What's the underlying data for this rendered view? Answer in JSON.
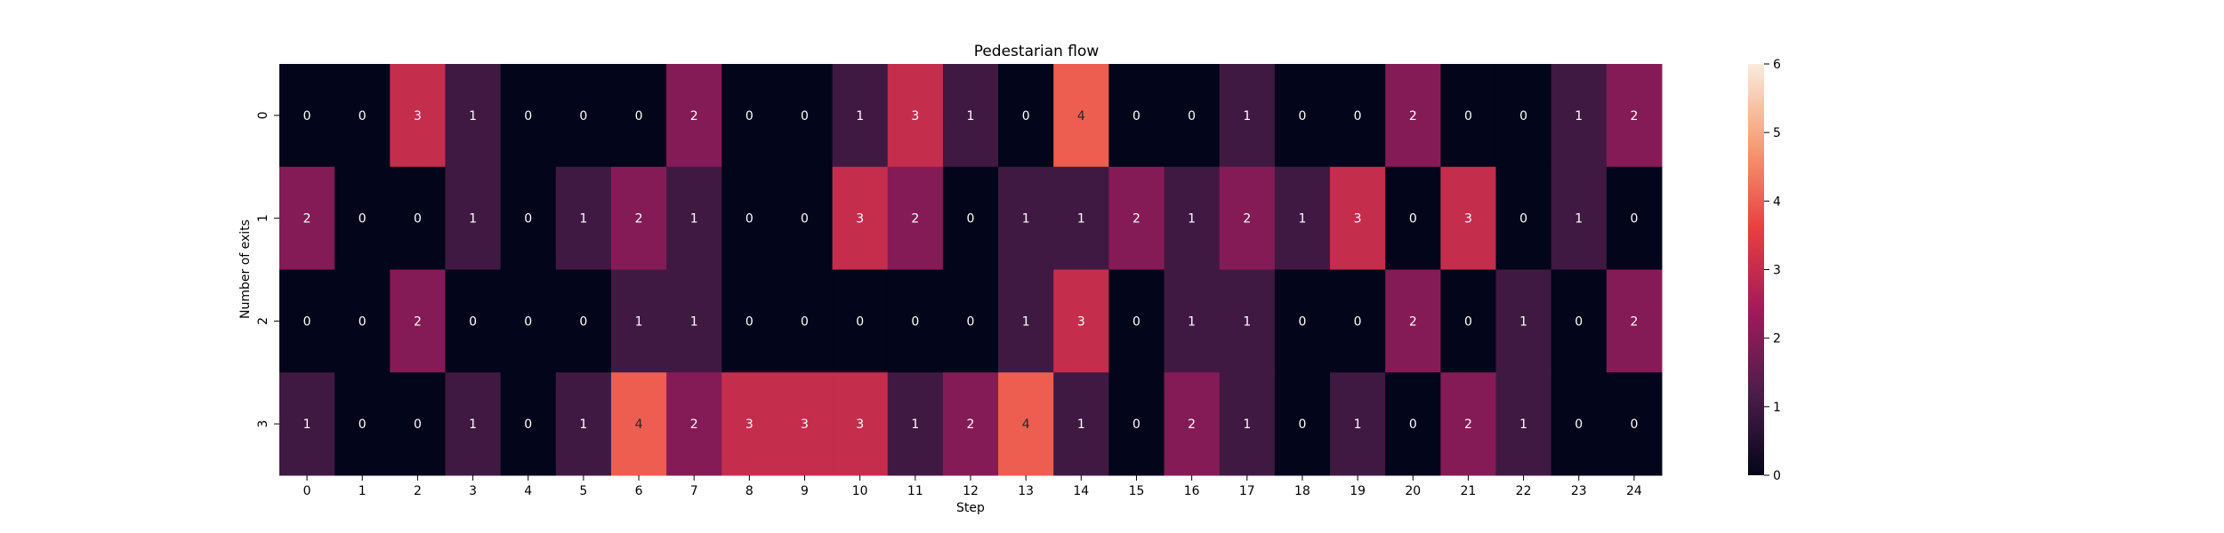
{
  "chart_data": {
    "type": "heatmap",
    "title": "Pedestarian flow",
    "xlabel": "Step",
    "ylabel": "Number of exits",
    "x_categories": [
      "0",
      "1",
      "2",
      "3",
      "4",
      "5",
      "6",
      "7",
      "8",
      "9",
      "10",
      "11",
      "12",
      "13",
      "14",
      "15",
      "16",
      "17",
      "18",
      "19",
      "20",
      "21",
      "22",
      "23",
      "24"
    ],
    "y_categories": [
      "0",
      "1",
      "2",
      "3"
    ],
    "values": [
      [
        0,
        0,
        3,
        1,
        0,
        0,
        0,
        2,
        0,
        0,
        1,
        3,
        1,
        0,
        4,
        0,
        0,
        1,
        0,
        0,
        2,
        0,
        0,
        1,
        2
      ],
      [
        2,
        0,
        0,
        1,
        0,
        1,
        2,
        1,
        0,
        0,
        3,
        2,
        0,
        1,
        1,
        2,
        1,
        2,
        1,
        3,
        0,
        3,
        0,
        1,
        0
      ],
      [
        0,
        0,
        2,
        0,
        0,
        0,
        1,
        1,
        0,
        0,
        0,
        0,
        0,
        1,
        3,
        0,
        1,
        1,
        0,
        0,
        2,
        0,
        1,
        0,
        2
      ],
      [
        1,
        0,
        0,
        1,
        0,
        1,
        4,
        2,
        3,
        3,
        3,
        1,
        2,
        4,
        1,
        0,
        2,
        1,
        0,
        1,
        0,
        2,
        1,
        0,
        0
      ]
    ],
    "vmin": 0,
    "vmax": 6,
    "colorbar_ticks": [
      "0",
      "1",
      "2",
      "3",
      "4",
      "5",
      "6"
    ],
    "colormap": [
      "#03051a",
      "#4c1d4b",
      "#a11a5b",
      "#e83f3f",
      "#f69c73",
      "#faebdd"
    ],
    "annotations": true
  }
}
